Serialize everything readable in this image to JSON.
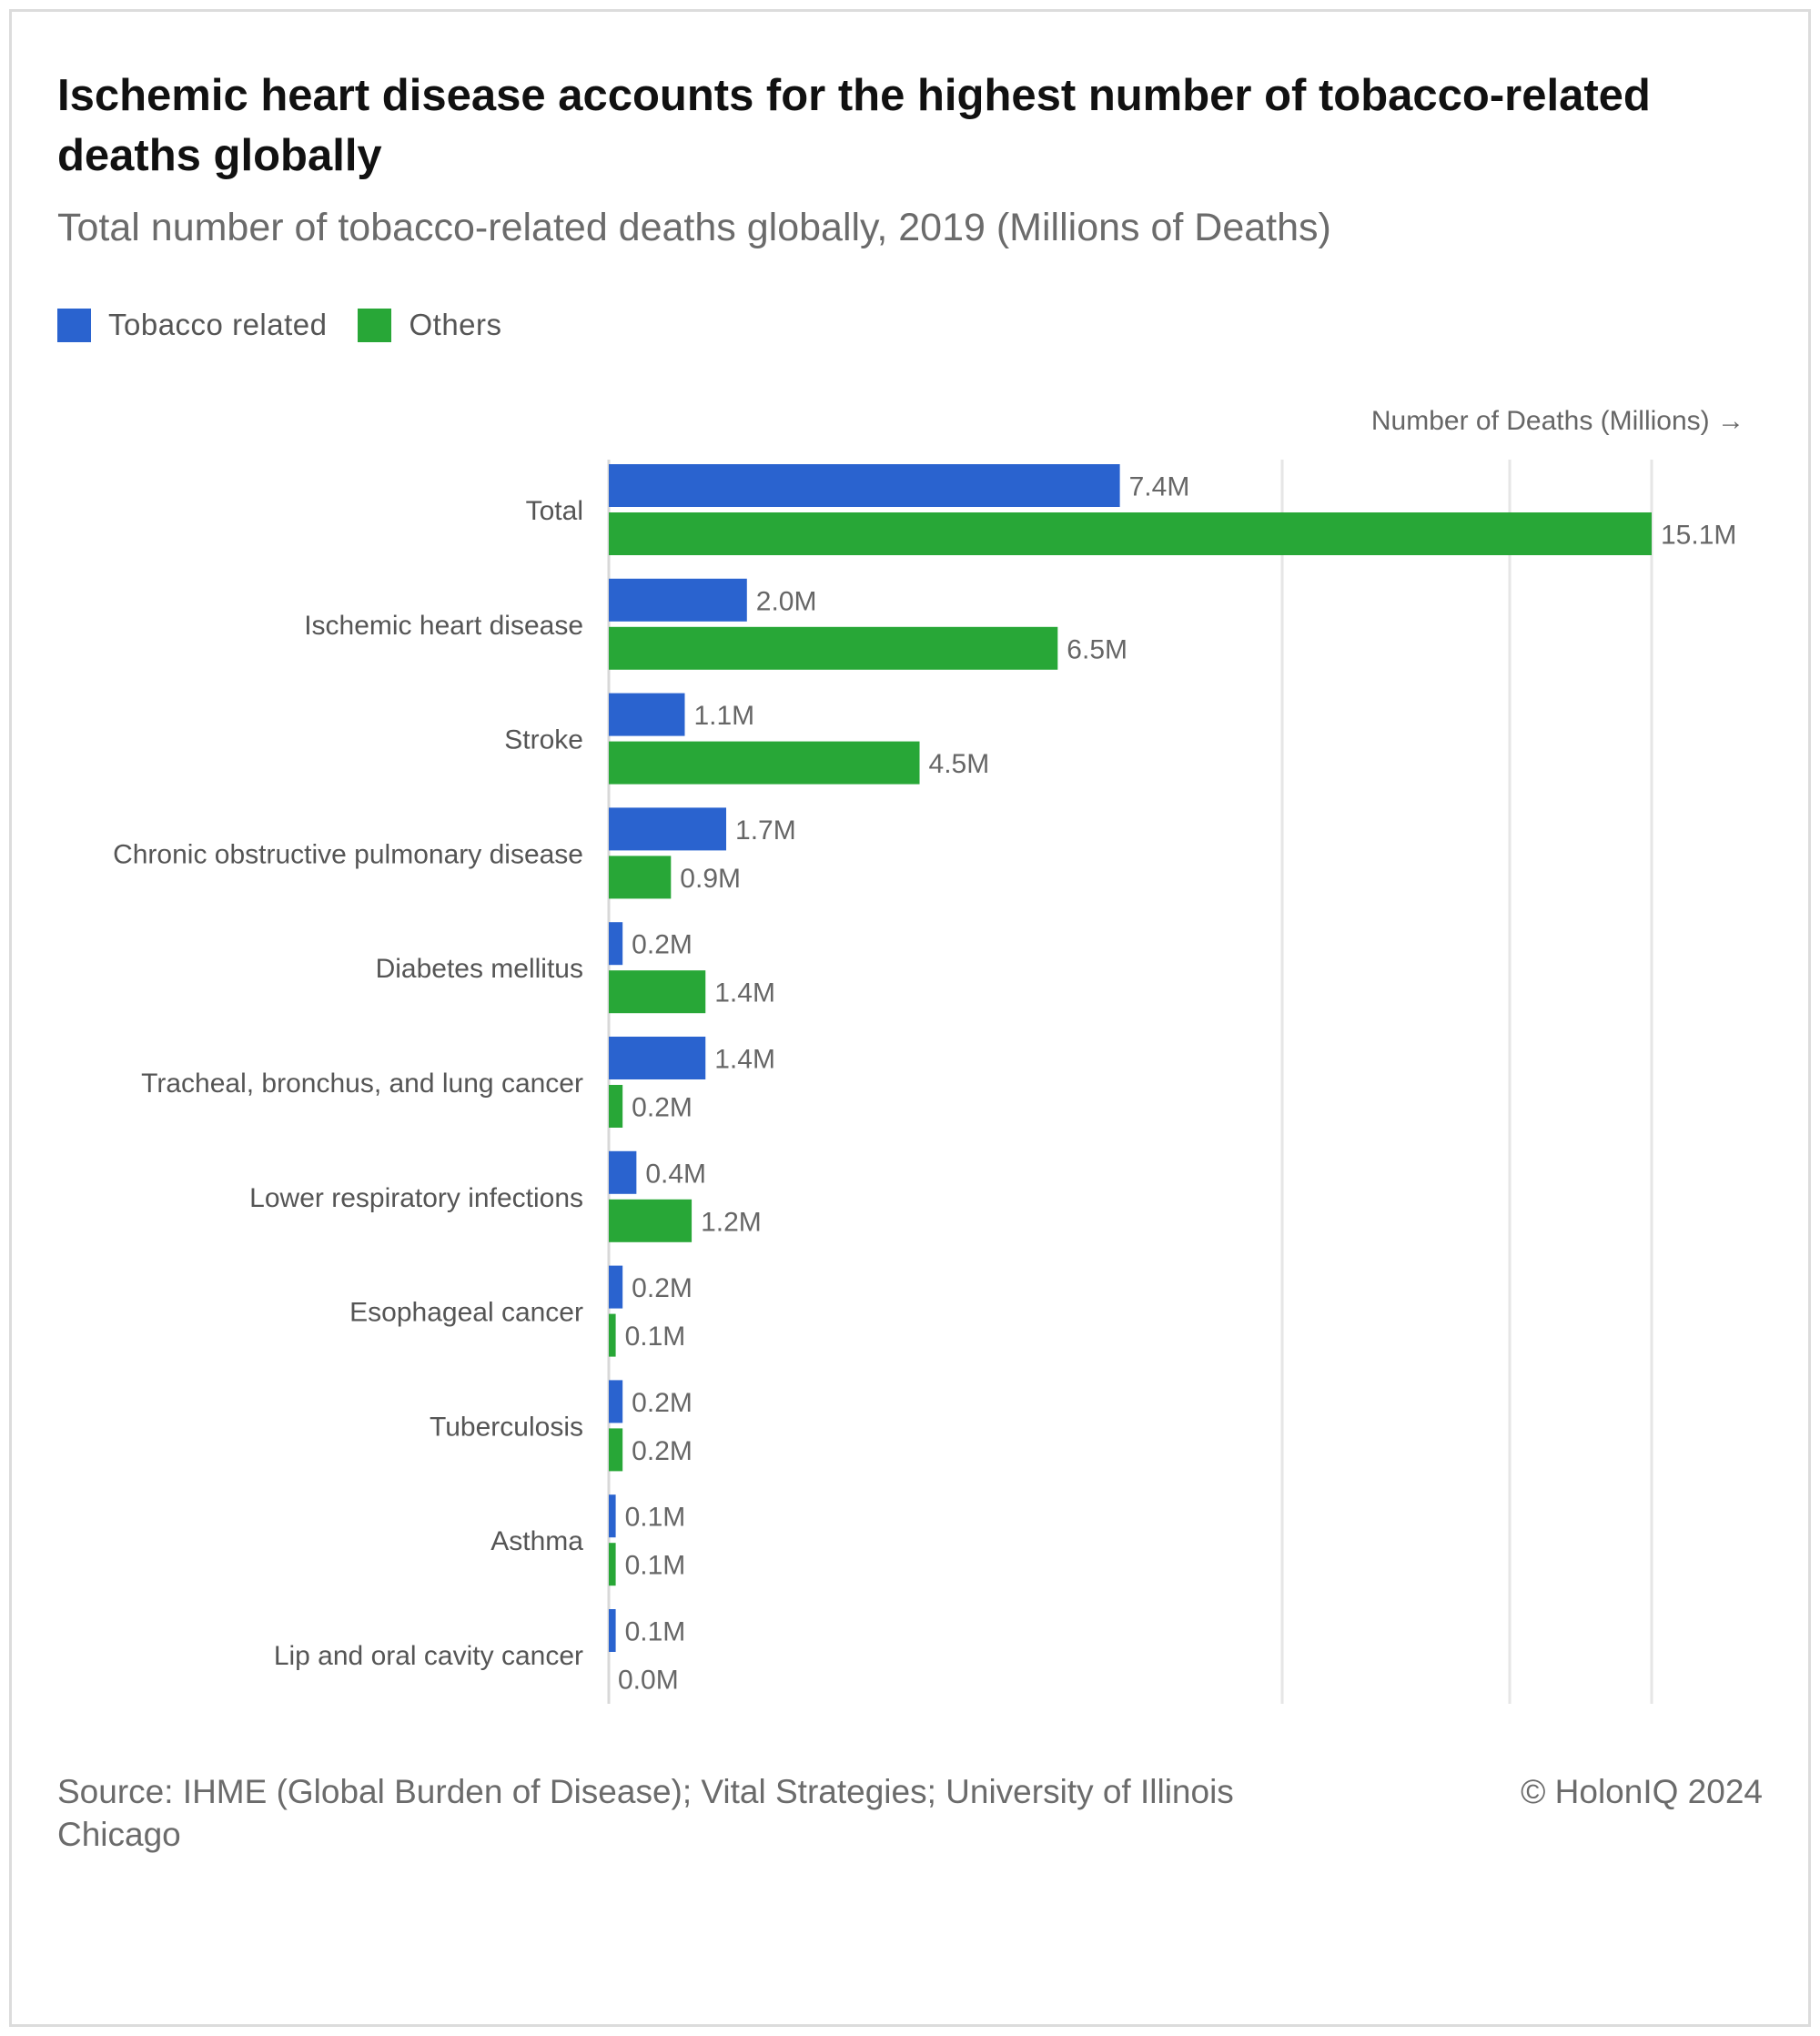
{
  "header": {
    "title": "Ischemic heart disease accounts for the highest number of tobacco-related deaths globally",
    "subtitle": "Total number of tobacco-related deaths globally, 2019 (Millions of Deaths)"
  },
  "legend": {
    "items": [
      {
        "label": "Tobacco related",
        "color": "#2a63cf"
      },
      {
        "label": "Others",
        "color": "#28a737"
      }
    ]
  },
  "footer": {
    "source": "Source: IHME (Global Burden of Disease); Vital Strategies; University of Illinois Chicago",
    "copyright": "© HolonIQ 2024"
  },
  "chart_data": {
    "type": "bar",
    "orientation": "horizontal",
    "xlabel": "Number of Deaths (Millions) →",
    "xlim": [
      0,
      15.1
    ],
    "categories": [
      "Total",
      "Ischemic heart disease",
      "Stroke",
      "Chronic obstructive pulmonary disease",
      "Diabetes mellitus",
      "Tracheal, bronchus, and lung cancer",
      "Lower respiratory infections",
      "Esophageal cancer",
      "Tuberculosis",
      "Asthma",
      "Lip and oral cavity cancer"
    ],
    "series": [
      {
        "name": "Tobacco related",
        "color": "#2a63cf",
        "values": [
          7.4,
          2.0,
          1.1,
          1.7,
          0.2,
          1.4,
          0.4,
          0.2,
          0.2,
          0.1,
          0.1
        ],
        "labels": [
          "7.4M",
          "2.0M",
          "1.1M",
          "1.7M",
          "0.2M",
          "1.4M",
          "0.4M",
          "0.2M",
          "0.2M",
          "0.1M",
          "0.1M"
        ]
      },
      {
        "name": "Others",
        "color": "#28a737",
        "values": [
          15.1,
          6.5,
          4.5,
          0.9,
          1.4,
          0.2,
          1.2,
          0.1,
          0.2,
          0.1,
          0.0
        ],
        "labels": [
          "15.1M",
          "6.5M",
          "4.5M",
          "0.9M",
          "1.4M",
          "0.2M",
          "1.2M",
          "0.1M",
          "0.2M",
          "0.1M",
          "0.0M"
        ]
      }
    ],
    "grid": true
  }
}
